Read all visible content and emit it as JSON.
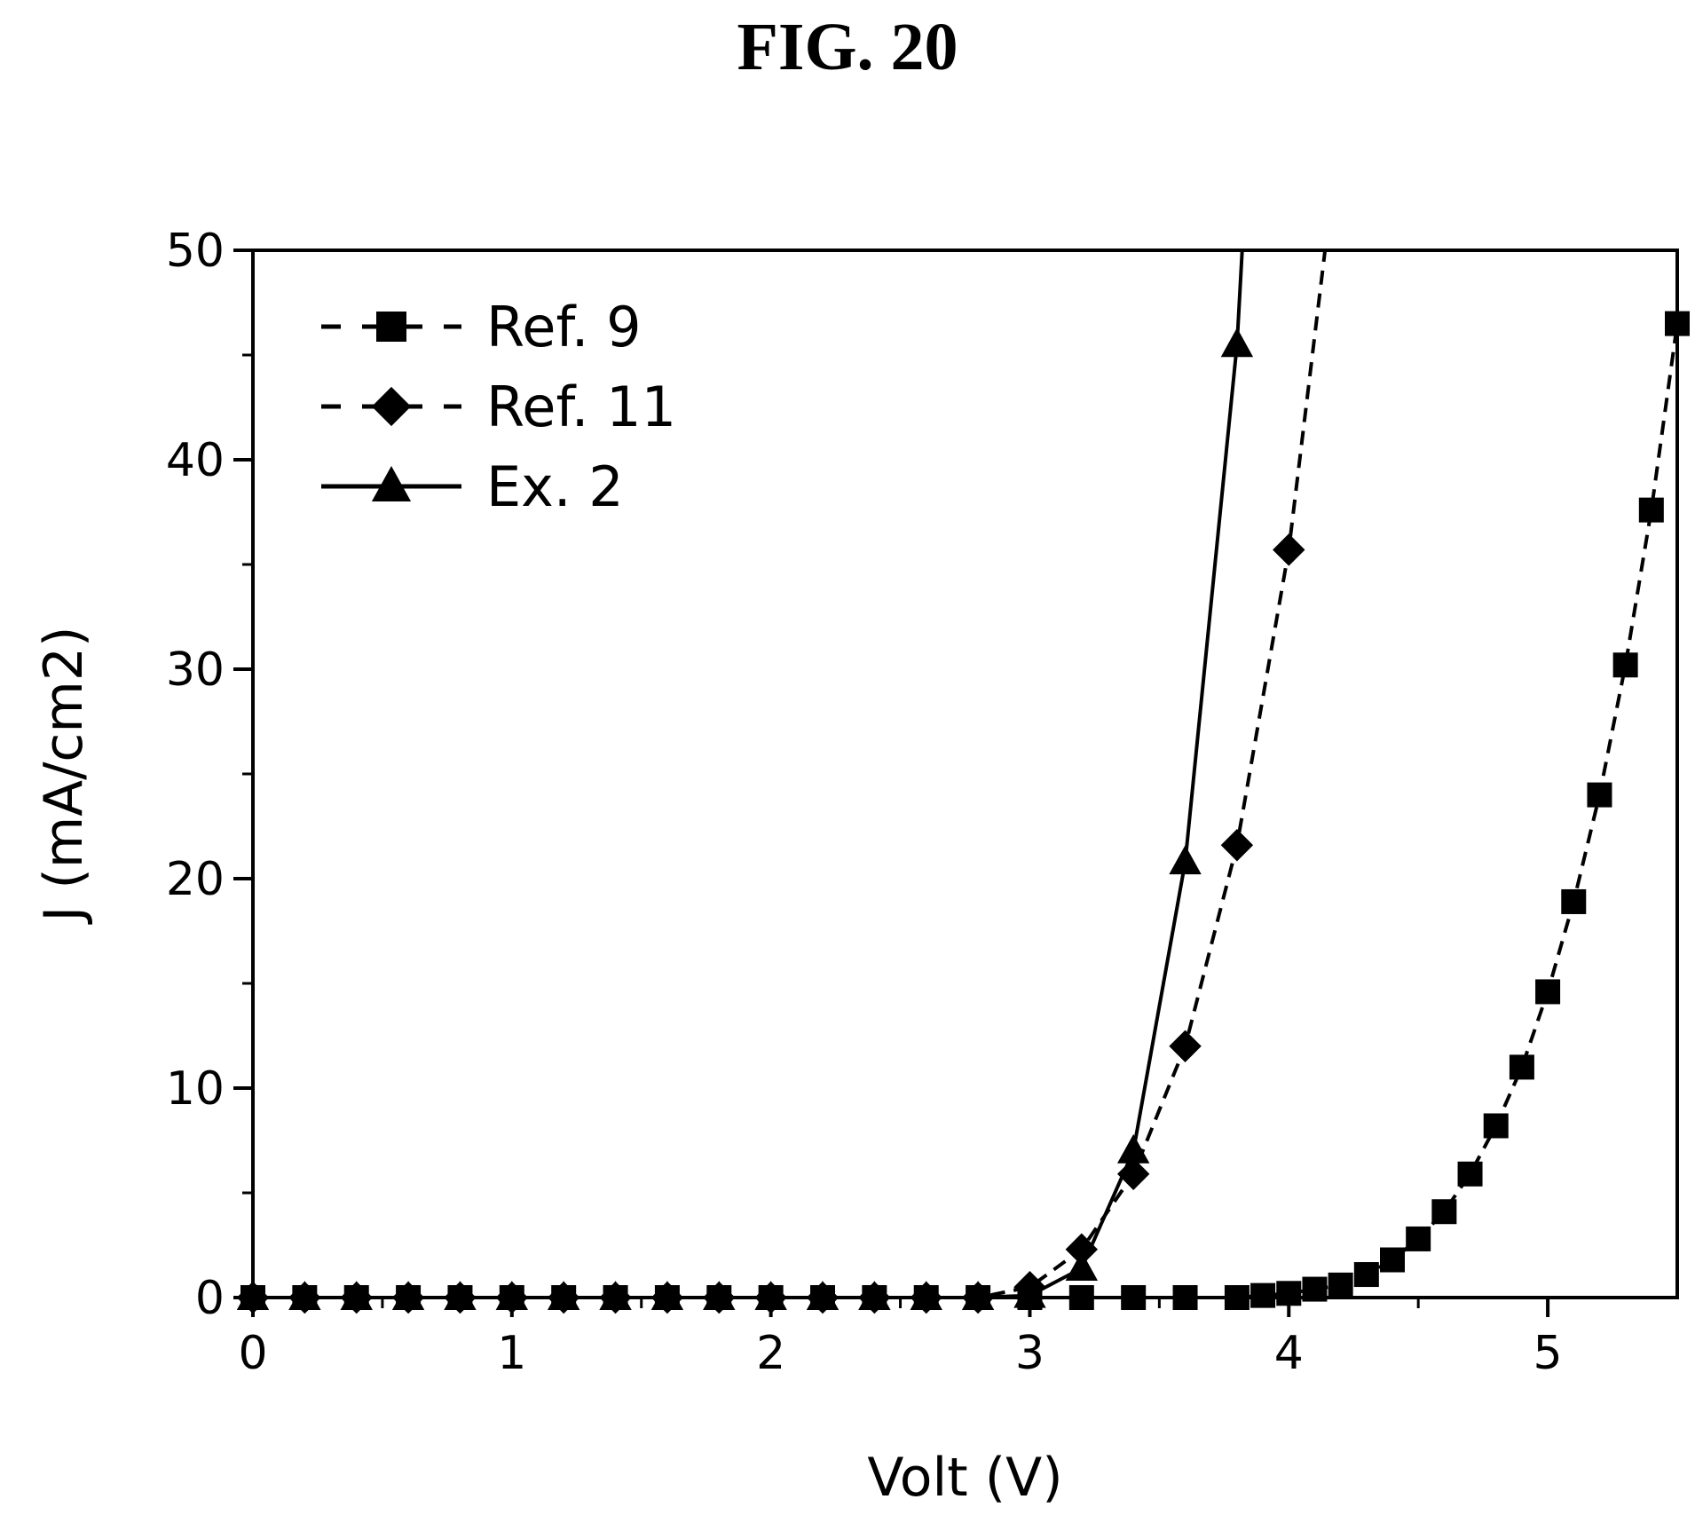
{
  "figure": {
    "title": "FIG. 20"
  },
  "chart_data": {
    "type": "line",
    "title": "FIG. 20",
    "xlabel": "Volt (V)",
    "ylabel": "J (mA/cm2)",
    "xlim": [
      0,
      5.5
    ],
    "ylim": [
      0,
      50
    ],
    "xticks": [
      0,
      1,
      2,
      3,
      4,
      5
    ],
    "yticks": [
      0,
      10,
      20,
      30,
      40,
      50
    ],
    "grid": false,
    "legend_position": "top-left",
    "series": [
      {
        "name": "Ref. 9",
        "marker": "square",
        "line_style": "dashed",
        "x": [
          0.0,
          0.2,
          0.4,
          0.6,
          0.8,
          1.0,
          1.2,
          1.4,
          1.6,
          1.8,
          2.0,
          2.2,
          2.4,
          2.6,
          2.8,
          3.0,
          3.2,
          3.4,
          3.6,
          3.8,
          3.9,
          4.0,
          4.1,
          4.2,
          4.3,
          4.4,
          4.5,
          4.6,
          4.7,
          4.8,
          4.9,
          5.0,
          5.1,
          5.2,
          5.3,
          5.4,
          5.5
        ],
        "y": [
          0,
          0,
          0,
          0,
          0,
          0,
          0,
          0,
          0,
          0,
          0,
          0,
          0,
          0,
          0,
          0,
          0,
          0,
          0,
          0,
          0.1,
          0.2,
          0.4,
          0.6,
          1.1,
          1.8,
          2.8,
          4.1,
          5.9,
          8.2,
          11.0,
          14.6,
          18.9,
          24.0,
          30.2,
          37.6,
          46.5
        ]
      },
      {
        "name": "Ref. 11",
        "marker": "diamond",
        "line_style": "dashed",
        "x": [
          0.0,
          0.2,
          0.4,
          0.6,
          0.8,
          1.0,
          1.2,
          1.4,
          1.6,
          1.8,
          2.0,
          2.2,
          2.4,
          2.6,
          2.8,
          3.0,
          3.2,
          3.4,
          3.6,
          3.8,
          4.0,
          4.14
        ],
        "y": [
          0,
          0,
          0,
          0,
          0,
          0,
          0,
          0,
          0,
          0,
          0,
          0,
          0,
          0,
          0,
          0.5,
          2.3,
          5.9,
          12.0,
          21.6,
          35.7,
          50
        ]
      },
      {
        "name": "Ex. 2",
        "marker": "triangle",
        "line_style": "solid",
        "x": [
          0.0,
          0.2,
          0.4,
          0.6,
          0.8,
          1.0,
          1.2,
          1.4,
          1.6,
          1.8,
          2.0,
          2.2,
          2.4,
          2.6,
          2.8,
          3.0,
          3.2,
          3.4,
          3.6,
          3.8,
          3.82
        ],
        "y": [
          0,
          0,
          0,
          0,
          0,
          0,
          0,
          0,
          0,
          0,
          0,
          0,
          0,
          0,
          0,
          0.1,
          1.4,
          7.0,
          20.8,
          45.5,
          50
        ]
      }
    ]
  }
}
